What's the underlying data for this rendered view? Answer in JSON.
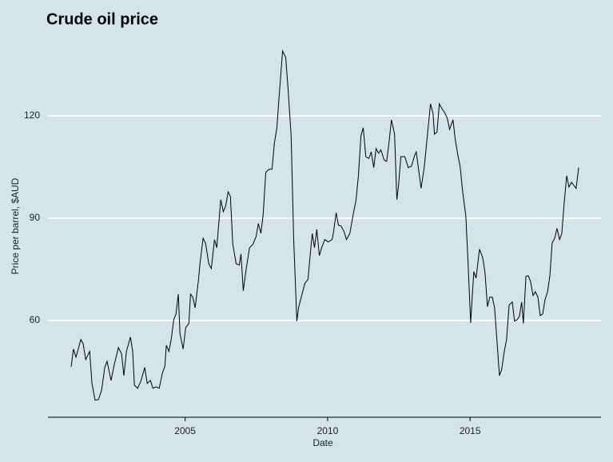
{
  "chart_data": {
    "type": "line",
    "title": "Crude oil price",
    "x_label": "Date",
    "y_label": "Price per barrel, $AUD",
    "x": [
      2001.0,
      2001.08,
      2001.17,
      2001.34,
      2001.42,
      2001.51,
      2001.65,
      2001.73,
      2001.84,
      2001.96,
      2002.07,
      2002.18,
      2002.26,
      2002.4,
      2002.52,
      2002.66,
      2002.77,
      2002.85,
      2002.94,
      2003.08,
      2003.16,
      2003.22,
      2003.33,
      2003.44,
      2003.58,
      2003.67,
      2003.78,
      2003.87,
      2003.98,
      2004.09,
      2004.2,
      2004.29,
      2004.34,
      2004.43,
      2004.51,
      2004.6,
      2004.68,
      2004.76,
      2004.82,
      2004.93,
      2005.02,
      2005.13,
      2005.19,
      2005.27,
      2005.35,
      2005.47,
      2005.52,
      2005.63,
      2005.72,
      2005.83,
      2005.92,
      2006.03,
      2006.11,
      2006.25,
      2006.34,
      2006.42,
      2006.51,
      2006.59,
      2006.67,
      2006.79,
      2006.9,
      2006.96,
      2007.04,
      2007.15,
      2007.26,
      2007.38,
      2007.49,
      2007.57,
      2007.66,
      2007.74,
      2007.83,
      2007.94,
      2008.05,
      2008.13,
      2008.22,
      2008.3,
      2008.42,
      2008.53,
      2008.61,
      2008.72,
      2008.81,
      2008.92,
      2008.98,
      2009.09,
      2009.2,
      2009.31,
      2009.46,
      2009.54,
      2009.62,
      2009.71,
      2009.79,
      2009.9,
      2010.02,
      2010.16,
      2010.21,
      2010.3,
      2010.38,
      2010.47,
      2010.58,
      2010.66,
      2010.78,
      2010.89,
      2011.0,
      2011.08,
      2011.17,
      2011.25,
      2011.34,
      2011.45,
      2011.53,
      2011.62,
      2011.7,
      2011.79,
      2011.87,
      2011.98,
      2012.07,
      2012.15,
      2012.24,
      2012.35,
      2012.43,
      2012.49,
      2012.57,
      2012.71,
      2012.83,
      2012.94,
      2013.05,
      2013.11,
      2013.28,
      2013.39,
      2013.5,
      2013.61,
      2013.7,
      2013.75,
      2013.84,
      2013.92,
      2014.01,
      2014.09,
      2014.2,
      2014.28,
      2014.4,
      2014.48,
      2014.57,
      2014.65,
      2014.74,
      2014.85,
      2014.93,
      2015.02,
      2015.13,
      2015.21,
      2015.33,
      2015.44,
      2015.52,
      2015.61,
      2015.69,
      2015.78,
      2015.86,
      2015.95,
      2016.03,
      2016.11,
      2016.2,
      2016.28,
      2016.37,
      2016.48,
      2016.56,
      2016.65,
      2016.73,
      2016.81,
      2016.87,
      2016.96,
      2017.04,
      2017.12,
      2017.21,
      2017.29,
      2017.38,
      2017.46,
      2017.55,
      2017.63,
      2017.72,
      2017.8,
      2017.88,
      2017.97,
      2018.05,
      2018.14,
      2018.22,
      2018.3,
      2018.39,
      2018.47,
      2018.56,
      2018.64,
      2018.72,
      2018.81
    ],
    "series": [
      {
        "color": "#000000",
        "values": [
          46.4,
          51.6,
          49.2,
          54.4,
          53.2,
          48.5,
          50.9,
          41.5,
          36.6,
          36.8,
          39.6,
          46.2,
          48,
          42.4,
          47.3,
          52,
          50.2,
          43.8,
          50.9,
          55.1,
          50.9,
          41,
          40.1,
          42,
          46.2,
          41.5,
          42.4,
          40.1,
          40.5,
          40.1,
          44.5,
          46.6,
          52.7,
          50.9,
          54.4,
          60.2,
          61.9,
          67.7,
          56,
          51.6,
          57.9,
          59.1,
          67.7,
          66.8,
          63.7,
          72,
          76.6,
          84.1,
          82.5,
          76.6,
          75.2,
          83.7,
          81.3,
          95.4,
          91.9,
          93.5,
          97.7,
          96.3,
          82.5,
          76.6,
          76.2,
          79.5,
          68.7,
          75.5,
          81.3,
          82.3,
          84.6,
          88.4,
          85.5,
          91.2,
          103.4,
          104.3,
          104.3,
          111.8,
          116.5,
          125.9,
          139,
          137.1,
          128.2,
          114.1,
          83.7,
          59.8,
          63.7,
          67.3,
          70.8,
          72,
          85.5,
          81.3,
          86.7,
          79,
          81.3,
          83.7,
          83,
          83.7,
          86,
          91.6,
          87.9,
          87.7,
          86,
          83.7,
          85.5,
          90.7,
          95.4,
          102.4,
          114.1,
          116.5,
          108,
          107.5,
          109.4,
          104.8,
          110.4,
          109,
          110,
          107.1,
          106.6,
          111.8,
          118.8,
          114.6,
          95.4,
          99.6,
          108,
          108,
          104.8,
          105.2,
          108.3,
          109.4,
          98.7,
          104.8,
          114.1,
          123.5,
          120.7,
          114.6,
          115.3,
          123.5,
          122.1,
          121.2,
          119.3,
          116,
          118.8,
          113,
          108.5,
          105.2,
          97.7,
          90.7,
          76.6,
          59.3,
          74.3,
          72.4,
          80.9,
          78.5,
          74.3,
          64,
          66.8,
          66.8,
          63.7,
          53.2,
          43.8,
          45.7,
          50.9,
          54.4,
          64.5,
          65.4,
          59.8,
          60.2,
          61.2,
          65.4,
          59.1,
          72.9,
          73.1,
          71.5,
          67.3,
          68.4,
          66.8,
          61.4,
          61.9,
          66.1,
          68.4,
          73.1,
          82.7,
          84.1,
          87,
          83.7,
          85.5,
          94.2,
          102.4,
          99.1,
          100.5,
          99.6,
          98.7,
          104.8
        ]
      }
    ],
    "xlim": [
      2000.11,
      2019.69
    ],
    "xticks": [
      2005,
      2010,
      2015
    ],
    "ylim": [
      31.6,
      144.1
    ],
    "yticks": [
      60,
      90,
      120
    ],
    "grid": true
  }
}
